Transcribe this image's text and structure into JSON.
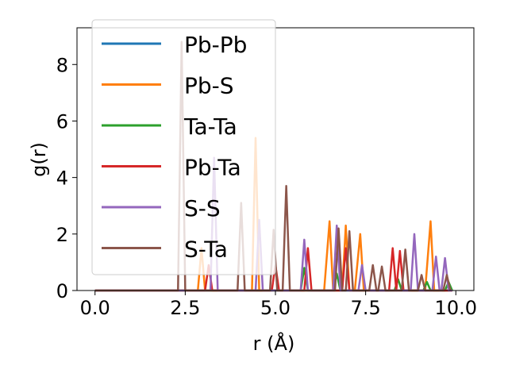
{
  "chart_data": {
    "type": "line",
    "title": "",
    "xlabel": "r (Å)",
    "ylabel": "g(r)",
    "xlim": [
      -0.5,
      10.5
    ],
    "ylim": [
      0,
      9.3
    ],
    "xticks": [
      "0.0",
      "2.5",
      "5.0",
      "7.5",
      "10.0"
    ],
    "xtick_values": [
      0,
      2.5,
      5.0,
      7.5,
      10.0
    ],
    "yticks": [
      "0",
      "2",
      "4",
      "6",
      "8"
    ],
    "ytick_values": [
      0,
      2,
      4,
      6,
      8
    ],
    "grid": false,
    "legend_position": "top-left",
    "series": [
      {
        "name": "Pb-Pb",
        "color": "#1f77b4",
        "points": [
          [
            0,
            0
          ],
          [
            9.9,
            0
          ]
        ]
      },
      {
        "name": "Pb-S",
        "color": "#ff7f0e",
        "points": [
          [
            0,
            0
          ],
          [
            2.85,
            0
          ],
          [
            2.95,
            1.5
          ],
          [
            3.05,
            0
          ],
          [
            4.35,
            0
          ],
          [
            4.45,
            5.4
          ],
          [
            4.55,
            0
          ],
          [
            6.35,
            0
          ],
          [
            6.5,
            2.45
          ],
          [
            6.6,
            0
          ],
          [
            6.85,
            0
          ],
          [
            6.95,
            2.3
          ],
          [
            7.05,
            0
          ],
          [
            7.2,
            0
          ],
          [
            7.35,
            2.0
          ],
          [
            7.45,
            0
          ],
          [
            9.15,
            0
          ],
          [
            9.3,
            2.45
          ],
          [
            9.4,
            0
          ],
          [
            9.9,
            0
          ]
        ]
      },
      {
        "name": "Ta-Ta",
        "color": "#2ca02c",
        "points": [
          [
            0,
            0
          ],
          [
            5.7,
            0
          ],
          [
            5.8,
            0.8
          ],
          [
            5.9,
            0
          ],
          [
            6.6,
            0
          ],
          [
            6.7,
            0.6
          ],
          [
            6.8,
            0
          ],
          [
            8.3,
            0
          ],
          [
            8.4,
            0.4
          ],
          [
            8.5,
            0
          ],
          [
            9.1,
            0
          ],
          [
            9.2,
            0.3
          ],
          [
            9.3,
            0
          ],
          [
            9.7,
            0
          ],
          [
            9.8,
            0.3
          ],
          [
            9.9,
            0
          ]
        ]
      },
      {
        "name": "Pb-Ta",
        "color": "#d62728",
        "points": [
          [
            0,
            0
          ],
          [
            3.05,
            0
          ],
          [
            3.15,
            0.9
          ],
          [
            3.25,
            0
          ],
          [
            4.9,
            0
          ],
          [
            5.0,
            0.9
          ],
          [
            5.1,
            0
          ],
          [
            5.8,
            0
          ],
          [
            5.9,
            1.5
          ],
          [
            6.0,
            0
          ],
          [
            6.85,
            0
          ],
          [
            6.95,
            1.5
          ],
          [
            7.05,
            0
          ],
          [
            8.15,
            0
          ],
          [
            8.25,
            1.5
          ],
          [
            8.35,
            0
          ],
          [
            8.35,
            0
          ],
          [
            8.45,
            1.4
          ],
          [
            8.55,
            0
          ],
          [
            9.9,
            0
          ]
        ]
      },
      {
        "name": "S-S",
        "color": "#9467bd",
        "points": [
          [
            0,
            0
          ],
          [
            3.2,
            0
          ],
          [
            3.3,
            4.7
          ],
          [
            3.4,
            0
          ],
          [
            4.45,
            0
          ],
          [
            4.55,
            2.5
          ],
          [
            4.65,
            0
          ],
          [
            5.7,
            0
          ],
          [
            5.8,
            1.8
          ],
          [
            5.9,
            0
          ],
          [
            6.6,
            0
          ],
          [
            6.7,
            2.3
          ],
          [
            6.8,
            0
          ],
          [
            7.3,
            0
          ],
          [
            7.4,
            0.9
          ],
          [
            7.5,
            0
          ],
          [
            8.75,
            0
          ],
          [
            8.85,
            2.0
          ],
          [
            8.95,
            0
          ],
          [
            9.35,
            0
          ],
          [
            9.45,
            1.2
          ],
          [
            9.55,
            0
          ],
          [
            9.6,
            0
          ],
          [
            9.7,
            1.15
          ],
          [
            9.8,
            0
          ],
          [
            9.9,
            0
          ]
        ]
      },
      {
        "name": "S-Ta",
        "color": "#8c564b",
        "points": [
          [
            0,
            0
          ],
          [
            2.3,
            0
          ],
          [
            2.4,
            8.8
          ],
          [
            2.5,
            0
          ],
          [
            3.95,
            0
          ],
          [
            4.05,
            3.1
          ],
          [
            4.15,
            0
          ],
          [
            4.85,
            0
          ],
          [
            4.95,
            2.15
          ],
          [
            5.05,
            0
          ],
          [
            5.2,
            0
          ],
          [
            5.3,
            3.7
          ],
          [
            5.4,
            0
          ],
          [
            6.65,
            0
          ],
          [
            6.75,
            2.2
          ],
          [
            6.85,
            0
          ],
          [
            6.95,
            0
          ],
          [
            7.05,
            2.1
          ],
          [
            7.15,
            0
          ],
          [
            7.6,
            0
          ],
          [
            7.7,
            0.9
          ],
          [
            7.8,
            0
          ],
          [
            7.85,
            0
          ],
          [
            7.95,
            0.85
          ],
          [
            8.05,
            0
          ],
          [
            8.5,
            0
          ],
          [
            8.6,
            1.45
          ],
          [
            8.7,
            0
          ],
          [
            8.95,
            0
          ],
          [
            9.05,
            0.55
          ],
          [
            9.15,
            0
          ],
          [
            9.65,
            0
          ],
          [
            9.75,
            0.55
          ],
          [
            9.85,
            0
          ]
        ]
      }
    ]
  }
}
